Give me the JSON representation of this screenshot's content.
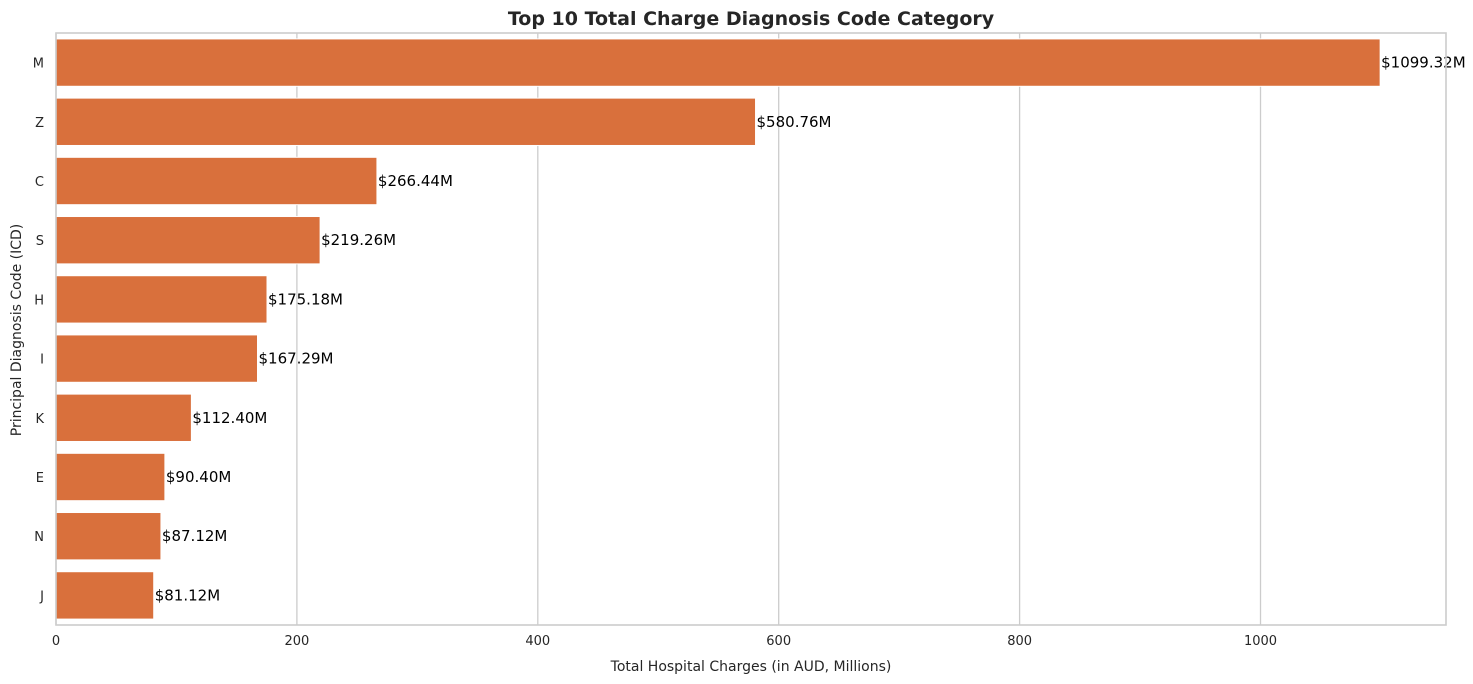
{
  "chart_data": {
    "type": "bar",
    "orientation": "horizontal",
    "title": "Top 10 Total Charge Diagnosis Code Category",
    "xlabel": "Total Hospital Charges (in AUD, Millions)",
    "ylabel": "Principal Diagnosis Code (ICD)",
    "categories": [
      "M",
      "Z",
      "C",
      "S",
      "H",
      "I",
      "K",
      "E",
      "N",
      "J"
    ],
    "values": [
      1099.32,
      580.76,
      266.44,
      219.26,
      175.18,
      167.29,
      112.4,
      90.4,
      87.12,
      81.12
    ],
    "data_labels": [
      "$1099.32M",
      "$580.76M",
      "$266.44M",
      "$219.26M",
      "$175.18M",
      "$167.29M",
      "$112.40M",
      "$90.40M",
      "$87.12M",
      "$81.12M"
    ],
    "xticks": [
      0,
      200,
      400,
      600,
      800,
      1000
    ],
    "xtick_labels": [
      "0",
      "200",
      "400",
      "600",
      "800",
      "1000"
    ],
    "xlim": [
      0,
      1154
    ],
    "grid": "vertical",
    "bar_color": "#d9703c",
    "grid_color": "#cccccc"
  }
}
